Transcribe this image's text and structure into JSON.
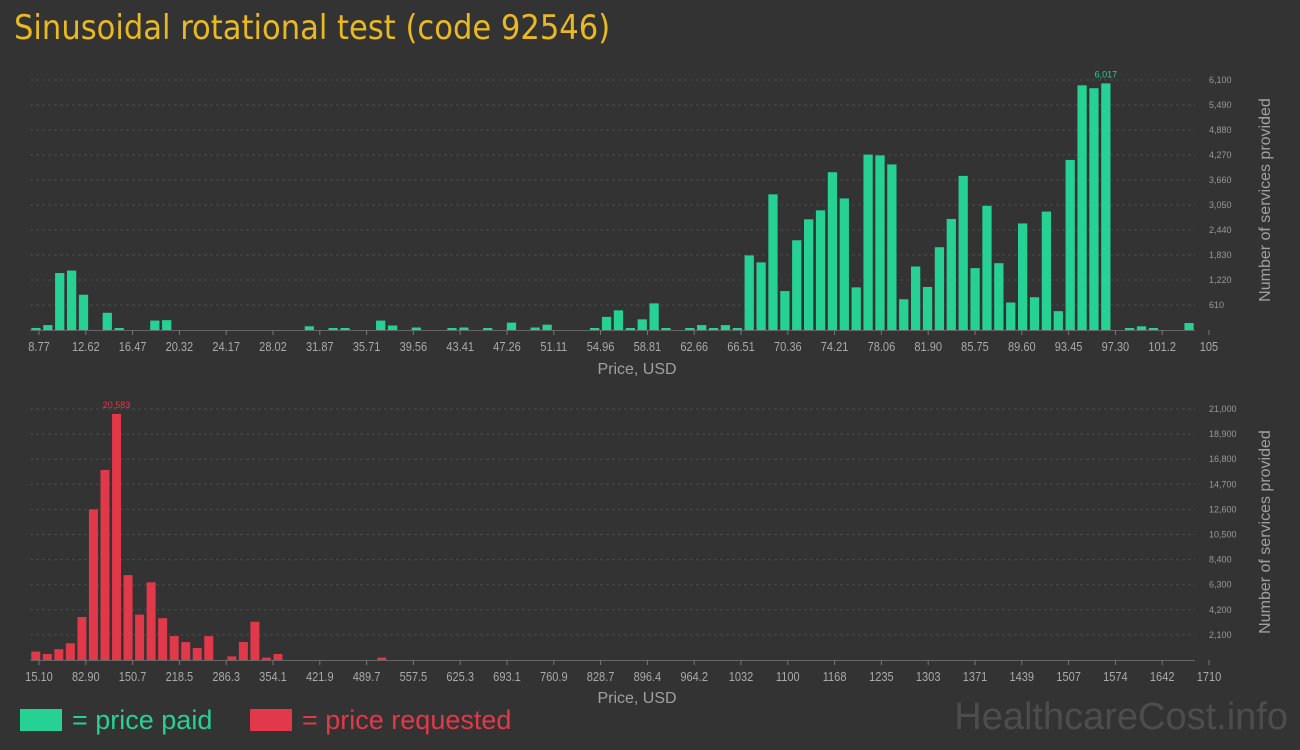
{
  "title": "Sinusoidal rotational test (code 92546)",
  "legend": {
    "paid_label": "= price paid",
    "requested_label": "= price requested",
    "paid_color": "#26d194",
    "requested_color": "#e2394a"
  },
  "watermark": "HealthcareCost.info",
  "chart_data": [
    {
      "type": "bar",
      "series": [
        {
          "name": "price paid",
          "color": "#26d194",
          "values": [
            50,
            120,
            1390,
            1450,
            860,
            0,
            420,
            30,
            0,
            0,
            230,
            240,
            0,
            0,
            0,
            0,
            0,
            0,
            0,
            0,
            0,
            0,
            0,
            90,
            0,
            40,
            40,
            0,
            0,
            230,
            110,
            0,
            60,
            0,
            0,
            30,
            60,
            0,
            30,
            0,
            180,
            0,
            60,
            130,
            0,
            0,
            0,
            30,
            320,
            480,
            40,
            260,
            650,
            30,
            0,
            40,
            120,
            40,
            120,
            30,
            1820,
            1650,
            3310,
            950,
            2190,
            2700,
            2920,
            3850,
            3210,
            1040,
            4280,
            4260,
            4040,
            750,
            1550,
            1050,
            2020,
            2710,
            3760,
            1510,
            3030,
            1630,
            670,
            2600,
            800,
            2890,
            460,
            4150,
            5970,
            5900,
            6017,
            0,
            30,
            90,
            30,
            0,
            0,
            170
          ]
        }
      ],
      "y_ticks": [
        "610",
        "1,220",
        "1,830",
        "2,440",
        "3,050",
        "3,660",
        "4,270",
        "4,880",
        "5,490",
        "6,100"
      ],
      "y_tick_values": [
        610,
        1220,
        1830,
        2440,
        3050,
        3660,
        4270,
        4880,
        5490,
        6100
      ],
      "ylim": [
        0,
        6100
      ],
      "peak_label": "6,017",
      "peak_index": 90,
      "x_ticks": [
        "8.77",
        "12.62",
        "16.47",
        "20.32",
        "24.17",
        "28.02",
        "31.87",
        "35.71",
        "39.56",
        "43.41",
        "47.26",
        "51.11",
        "54.96",
        "58.81",
        "62.66",
        "66.51",
        "70.36",
        "74.21",
        "78.06",
        "81.90",
        "85.75",
        "89.60",
        "93.45",
        "97.30",
        "101.2",
        "105"
      ],
      "xlabel": "Price, USD",
      "ylabel": "Number of services provided",
      "grid": true
    },
    {
      "type": "bar",
      "series": [
        {
          "name": "price requested",
          "color": "#e2394a",
          "values": [
            700,
            500,
            900,
            1400,
            3600,
            12600,
            15900,
            20583,
            7100,
            3800,
            6500,
            3500,
            2000,
            1500,
            1000,
            2000,
            0,
            300,
            1500,
            3200,
            200,
            500,
            0,
            0,
            0,
            0,
            0,
            0,
            0,
            0,
            200,
            0,
            0,
            0,
            0,
            0,
            0,
            0,
            0,
            0,
            0,
            0,
            0,
            0,
            0,
            0,
            0,
            0,
            0,
            0,
            0,
            0,
            0,
            0,
            0,
            0,
            0,
            0,
            0,
            0,
            0,
            0,
            0,
            0,
            0,
            0,
            0,
            0,
            0,
            0,
            0,
            0,
            0,
            0,
            0,
            0,
            0,
            0,
            0,
            0,
            0,
            0,
            0,
            0,
            0,
            0,
            0,
            0,
            0,
            0,
            0,
            0,
            0,
            0,
            0,
            0,
            0,
            0,
            0,
            0,
            0
          ]
        }
      ],
      "y_ticks": [
        "2,100",
        "4,200",
        "6,300",
        "8,400",
        "10,500",
        "12,600",
        "14,700",
        "16,800",
        "18,900",
        "21,000"
      ],
      "y_tick_values": [
        2100,
        4200,
        6300,
        8400,
        10500,
        12600,
        14700,
        16800,
        18900,
        21000
      ],
      "ylim": [
        0,
        21000
      ],
      "peak_label": "20,583",
      "peak_index": 7,
      "x_ticks": [
        "15.10",
        "82.90",
        "150.7",
        "218.5",
        "286.3",
        "354.1",
        "421.9",
        "489.7",
        "557.5",
        "625.3",
        "693.1",
        "760.9",
        "828.7",
        "896.4",
        "964.2",
        "1032",
        "1100",
        "1168",
        "1235",
        "1303",
        "1371",
        "1439",
        "1507",
        "1574",
        "1642",
        "1710"
      ],
      "xlabel": "Price, USD",
      "ylabel": "Number of services provided",
      "grid": true
    }
  ]
}
